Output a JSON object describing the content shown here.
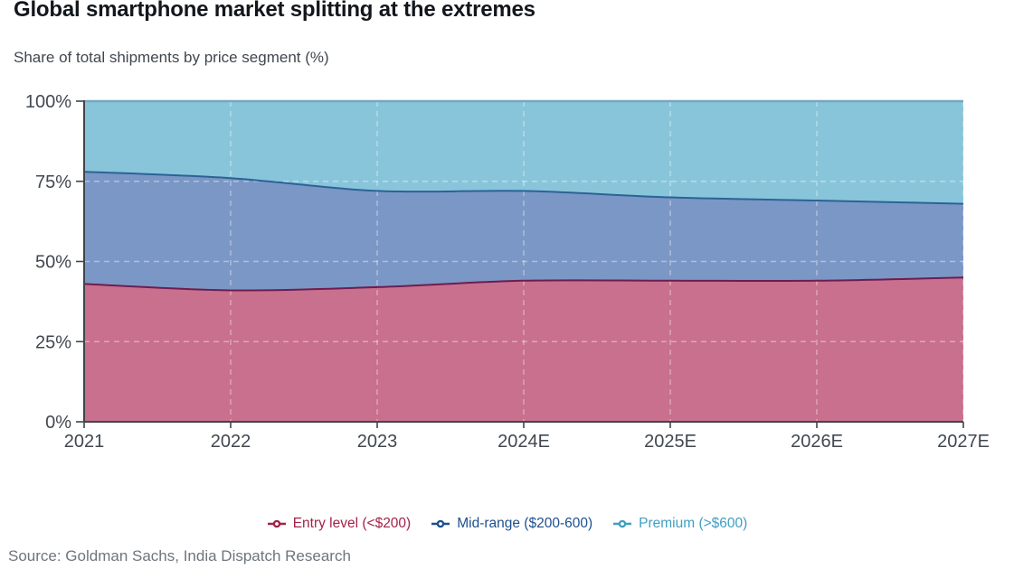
{
  "source_note": "Source: Goldman Sachs, India Dispatch Research",
  "colors": {
    "axis": "#3f454c",
    "tick_label": "#42484f",
    "grid_overlay": "rgba(255,255,255,0.40)",
    "title_text": "#13171c",
    "subtitle_text": "#40474f",
    "source_text": "#6e757d"
  },
  "chart_data": {
    "type": "area",
    "stacked": true,
    "title": "Global smartphone market splitting at the extremes",
    "subtitle": "Share of total shipments by price segment (%)",
    "x": [
      "2021",
      "2022",
      "2023",
      "2024E",
      "2025E",
      "2026E",
      "2027E"
    ],
    "series": [
      {
        "name": "Entry level (<$200)",
        "values": [
          43,
          41,
          42,
          44,
          44,
          44,
          45
        ],
        "fill": "#c8708d",
        "line": "#6e1d4f",
        "legend_color": "#a32249"
      },
      {
        "name": "Mid-range ($200-600)",
        "values": [
          35,
          35,
          30,
          28,
          26,
          25,
          23
        ],
        "fill": "#7b97c5",
        "line": "#2b6396",
        "legend_color": "#1d4f91"
      },
      {
        "name": "Premium (>$600)",
        "values": [
          22,
          24,
          28,
          28,
          30,
          31,
          32
        ],
        "fill": "#89c5da",
        "line": "#74a7bd",
        "legend_color": "#3f9fc2"
      }
    ],
    "ylim": [
      0,
      100
    ],
    "yticks": [
      {
        "value": 0,
        "label": "0%"
      },
      {
        "value": 25,
        "label": "25%"
      },
      {
        "value": 50,
        "label": "50%"
      },
      {
        "value": 75,
        "label": "75%"
      },
      {
        "value": 100,
        "label": "100%"
      }
    ],
    "grid": "dashed",
    "legend_position": "bottom-center",
    "units": "%"
  }
}
